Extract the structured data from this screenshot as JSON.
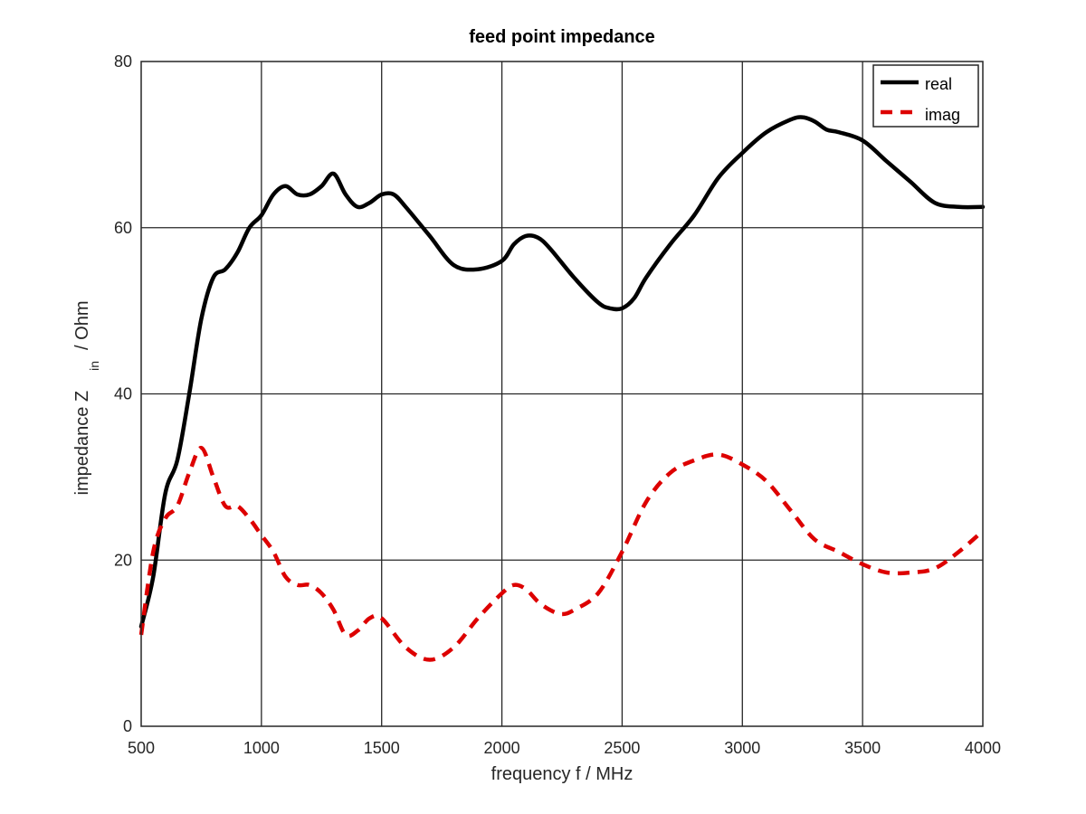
{
  "chart_data": {
    "type": "line",
    "title": "feed point impedance",
    "xlabel": "frequency f / MHz",
    "ylabel": {
      "main": "impedance Z",
      "subscript": "in",
      "unit": "/ Ohm"
    },
    "xlim": [
      500,
      4000
    ],
    "ylim": [
      0,
      80
    ],
    "xticks": [
      500,
      1000,
      1500,
      2000,
      2500,
      3000,
      3500,
      4000
    ],
    "yticks": [
      0,
      20,
      40,
      60,
      80
    ],
    "grid": true,
    "legend_position": "top-right",
    "series": [
      {
        "name": "real",
        "color": "#000000",
        "style": "solid",
        "x": [
          500,
          550,
          600,
          650,
          700,
          750,
          800,
          850,
          900,
          950,
          1000,
          1050,
          1100,
          1150,
          1200,
          1250,
          1300,
          1350,
          1400,
          1450,
          1500,
          1550,
          1600,
          1700,
          1800,
          1900,
          2000,
          2050,
          2100,
          2150,
          2200,
          2300,
          2400,
          2450,
          2500,
          2550,
          2600,
          2700,
          2800,
          2900,
          3000,
          3100,
          3200,
          3250,
          3300,
          3350,
          3400,
          3500,
          3600,
          3700,
          3800,
          3900,
          4000
        ],
        "y": [
          12,
          18,
          28,
          32,
          40,
          49,
          54,
          55,
          57,
          60,
          61.5,
          64,
          65,
          64,
          64,
          65,
          66.5,
          64,
          62.5,
          63,
          64,
          64,
          62.5,
          59,
          55.5,
          55,
          56,
          58,
          59,
          58.8,
          57.5,
          54,
          51,
          50.3,
          50.3,
          51.5,
          54,
          58,
          61.5,
          66,
          69,
          71.5,
          73,
          73.3,
          72.8,
          71.8,
          71.5,
          70.5,
          68,
          65.5,
          63,
          62.5,
          62.5
        ]
      },
      {
        "name": "imag",
        "color": "#dd0000",
        "style": "dashed",
        "x": [
          500,
          550,
          600,
          650,
          700,
          750,
          800,
          850,
          900,
          950,
          1000,
          1050,
          1100,
          1150,
          1200,
          1250,
          1300,
          1350,
          1400,
          1450,
          1500,
          1600,
          1700,
          1800,
          1900,
          2000,
          2050,
          2100,
          2150,
          2200,
          2250,
          2300,
          2400,
          2500,
          2600,
          2700,
          2800,
          2900,
          3000,
          3100,
          3200,
          3300,
          3400,
          3500,
          3600,
          3700,
          3800,
          3900,
          4000
        ],
        "y": [
          11,
          21,
          25,
          26.5,
          30.5,
          33.5,
          30,
          26.5,
          26.5,
          25,
          23,
          21,
          18,
          17,
          17,
          16,
          14,
          11,
          11.5,
          13,
          13,
          9.5,
          8,
          9.5,
          13,
          16,
          17,
          16.5,
          15,
          14,
          13.5,
          14,
          16,
          21,
          27,
          30.5,
          32,
          32.7,
          31.5,
          29.5,
          26,
          22.5,
          21,
          19.5,
          18.5,
          18.5,
          19,
          21,
          23.5
        ]
      }
    ]
  }
}
